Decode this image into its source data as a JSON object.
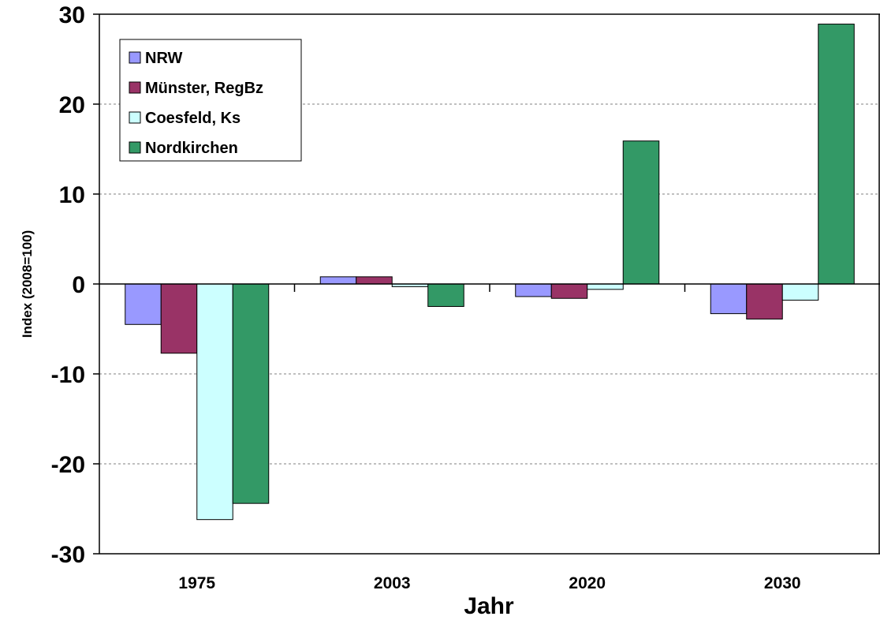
{
  "chart_data": {
    "type": "bar",
    "categories": [
      "1975",
      "2003",
      "2020",
      "2030"
    ],
    "series": [
      {
        "name": "NRW",
        "color": "#9999ff",
        "values": [
          -4.5,
          0.8,
          -1.4,
          -3.3
        ]
      },
      {
        "name": "Münster, RegBz",
        "color": "#993366",
        "values": [
          -7.7,
          0.8,
          -1.6,
          -3.9
        ]
      },
      {
        "name": "Coesfeld, Ks",
        "color": "#ccffff",
        "values": [
          -26.2,
          -0.3,
          -0.6,
          -1.8
        ]
      },
      {
        "name": "Nordkirchen",
        "color": "#339966",
        "values": [
          -24.4,
          -2.5,
          15.9,
          28.9
        ]
      }
    ],
    "xlabel": "Jahr",
    "ylabel": "Index (2008=100)",
    "ylim": [
      -30,
      30
    ],
    "yticks": [
      "30",
      "20",
      "10",
      "0",
      "-10",
      "-20",
      "-30"
    ],
    "grid": true,
    "legend_position": "top-left"
  }
}
